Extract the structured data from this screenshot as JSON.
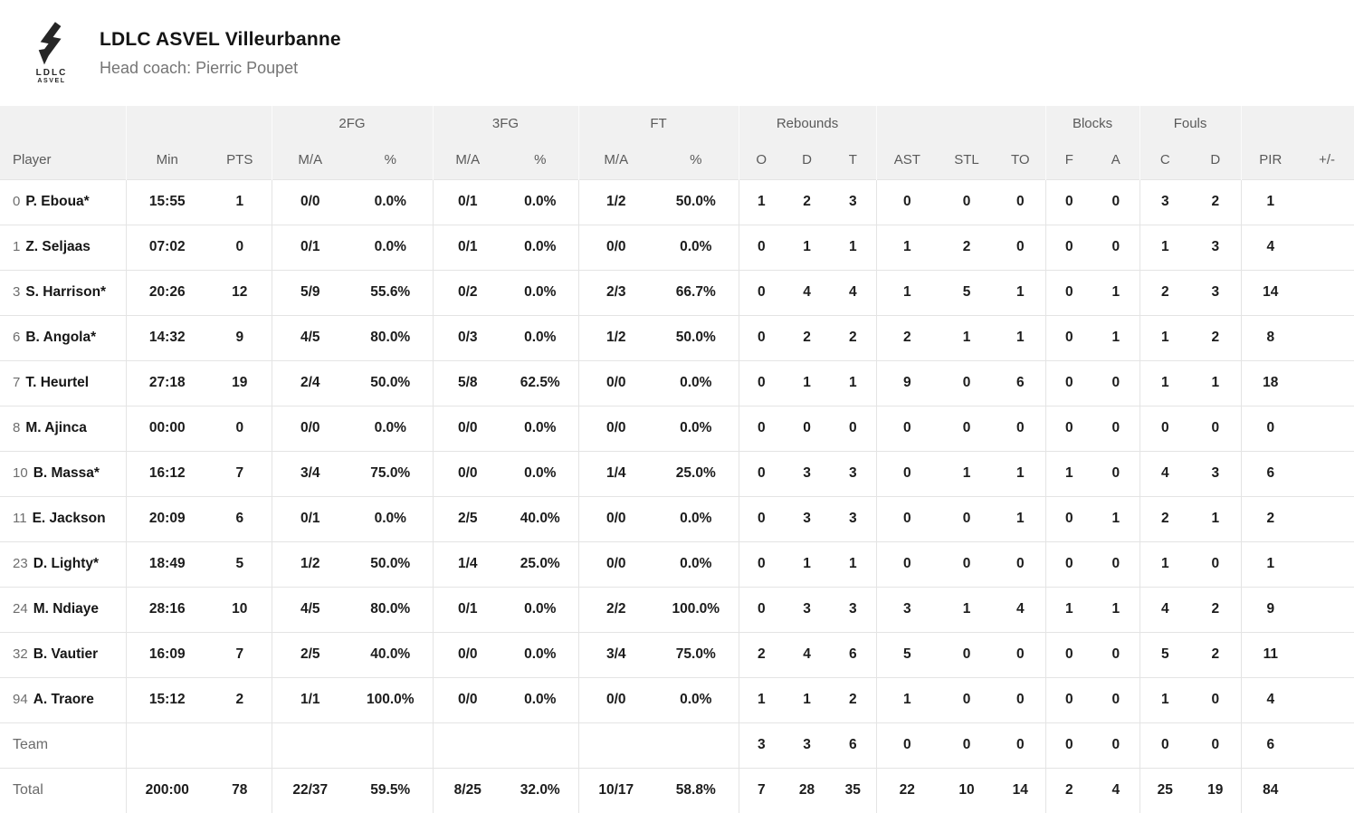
{
  "team_header": {
    "logo_line1": "LDLC",
    "logo_line2": "ASVEL",
    "team_name": "LDLC ASVEL Villeurbanne",
    "coach_label": "Head coach: Pierric Poupet"
  },
  "colors": {
    "header_bg": "#f1f1f1",
    "header_text": "#5a5a5a",
    "body_text": "#1c1c1c",
    "muted_text": "#6e6e6e",
    "logo_ink": "#262626"
  },
  "table": {
    "column_groups": [
      {
        "label": "",
        "span": 1
      },
      {
        "label": "",
        "span": 2
      },
      {
        "label": "2FG",
        "span": 2
      },
      {
        "label": "3FG",
        "span": 2
      },
      {
        "label": "FT",
        "span": 2
      },
      {
        "label": "Rebounds",
        "span": 3
      },
      {
        "label": "",
        "span": 3
      },
      {
        "label": "Blocks",
        "span": 2
      },
      {
        "label": "Fouls",
        "span": 2
      },
      {
        "label": "",
        "span": 2
      }
    ],
    "columns": [
      "Player",
      "Min",
      "PTS",
      "M/A",
      "%",
      "M/A",
      "%",
      "M/A",
      "%",
      "O",
      "D",
      "T",
      "AST",
      "STL",
      "TO",
      "F",
      "A",
      "C",
      "D",
      "PIR",
      "+/-"
    ],
    "players": [
      {
        "number": "0",
        "name": "P. Eboua",
        "starter": true,
        "stats": [
          "15:55",
          "1",
          "0/0",
          "0.0%",
          "0/1",
          "0.0%",
          "1/2",
          "50.0%",
          "1",
          "2",
          "3",
          "0",
          "0",
          "0",
          "0",
          "0",
          "3",
          "2",
          "1",
          ""
        ]
      },
      {
        "number": "1",
        "name": "Z. Seljaas",
        "starter": false,
        "stats": [
          "07:02",
          "0",
          "0/1",
          "0.0%",
          "0/1",
          "0.0%",
          "0/0",
          "0.0%",
          "0",
          "1",
          "1",
          "1",
          "2",
          "0",
          "0",
          "0",
          "1",
          "3",
          "4",
          ""
        ]
      },
      {
        "number": "3",
        "name": "S. Harrison",
        "starter": true,
        "stats": [
          "20:26",
          "12",
          "5/9",
          "55.6%",
          "0/2",
          "0.0%",
          "2/3",
          "66.7%",
          "0",
          "4",
          "4",
          "1",
          "5",
          "1",
          "0",
          "1",
          "2",
          "3",
          "14",
          ""
        ]
      },
      {
        "number": "6",
        "name": "B. Angola",
        "starter": true,
        "stats": [
          "14:32",
          "9",
          "4/5",
          "80.0%",
          "0/3",
          "0.0%",
          "1/2",
          "50.0%",
          "0",
          "2",
          "2",
          "2",
          "1",
          "1",
          "0",
          "1",
          "1",
          "2",
          "8",
          ""
        ]
      },
      {
        "number": "7",
        "name": "T. Heurtel",
        "starter": false,
        "stats": [
          "27:18",
          "19",
          "2/4",
          "50.0%",
          "5/8",
          "62.5%",
          "0/0",
          "0.0%",
          "0",
          "1",
          "1",
          "9",
          "0",
          "6",
          "0",
          "0",
          "1",
          "1",
          "18",
          ""
        ]
      },
      {
        "number": "8",
        "name": "M. Ajinca",
        "starter": false,
        "stats": [
          "00:00",
          "0",
          "0/0",
          "0.0%",
          "0/0",
          "0.0%",
          "0/0",
          "0.0%",
          "0",
          "0",
          "0",
          "0",
          "0",
          "0",
          "0",
          "0",
          "0",
          "0",
          "0",
          ""
        ]
      },
      {
        "number": "10",
        "name": "B. Massa",
        "starter": true,
        "stats": [
          "16:12",
          "7",
          "3/4",
          "75.0%",
          "0/0",
          "0.0%",
          "1/4",
          "25.0%",
          "0",
          "3",
          "3",
          "0",
          "1",
          "1",
          "1",
          "0",
          "4",
          "3",
          "6",
          ""
        ]
      },
      {
        "number": "11",
        "name": "E. Jackson",
        "starter": false,
        "stats": [
          "20:09",
          "6",
          "0/1",
          "0.0%",
          "2/5",
          "40.0%",
          "0/0",
          "0.0%",
          "0",
          "3",
          "3",
          "0",
          "0",
          "1",
          "0",
          "1",
          "2",
          "1",
          "2",
          ""
        ]
      },
      {
        "number": "23",
        "name": "D. Lighty",
        "starter": true,
        "stats": [
          "18:49",
          "5",
          "1/2",
          "50.0%",
          "1/4",
          "25.0%",
          "0/0",
          "0.0%",
          "0",
          "1",
          "1",
          "0",
          "0",
          "0",
          "0",
          "0",
          "1",
          "0",
          "1",
          ""
        ]
      },
      {
        "number": "24",
        "name": "M. Ndiaye",
        "starter": false,
        "stats": [
          "28:16",
          "10",
          "4/5",
          "80.0%",
          "0/1",
          "0.0%",
          "2/2",
          "100.0%",
          "0",
          "3",
          "3",
          "3",
          "1",
          "4",
          "1",
          "1",
          "4",
          "2",
          "9",
          ""
        ]
      },
      {
        "number": "32",
        "name": "B. Vautier",
        "starter": false,
        "stats": [
          "16:09",
          "7",
          "2/5",
          "40.0%",
          "0/0",
          "0.0%",
          "3/4",
          "75.0%",
          "2",
          "4",
          "6",
          "5",
          "0",
          "0",
          "0",
          "0",
          "5",
          "2",
          "11",
          ""
        ]
      },
      {
        "number": "94",
        "name": "A. Traore",
        "starter": false,
        "stats": [
          "15:12",
          "2",
          "1/1",
          "100.0%",
          "0/0",
          "0.0%",
          "0/0",
          "0.0%",
          "1",
          "1",
          "2",
          "1",
          "0",
          "0",
          "0",
          "0",
          "1",
          "0",
          "4",
          ""
        ]
      }
    ],
    "team_row": {
      "label": "Team",
      "stats": [
        "",
        "",
        "",
        "",
        "",
        "",
        "",
        "",
        "3",
        "3",
        "6",
        "0",
        "0",
        "0",
        "0",
        "0",
        "0",
        "0",
        "6",
        ""
      ]
    },
    "total_row": {
      "label": "Total",
      "stats": [
        "200:00",
        "78",
        "22/37",
        "59.5%",
        "8/25",
        "32.0%",
        "10/17",
        "58.8%",
        "7",
        "28",
        "35",
        "22",
        "10",
        "14",
        "2",
        "4",
        "25",
        "19",
        "84",
        ""
      ]
    }
  }
}
